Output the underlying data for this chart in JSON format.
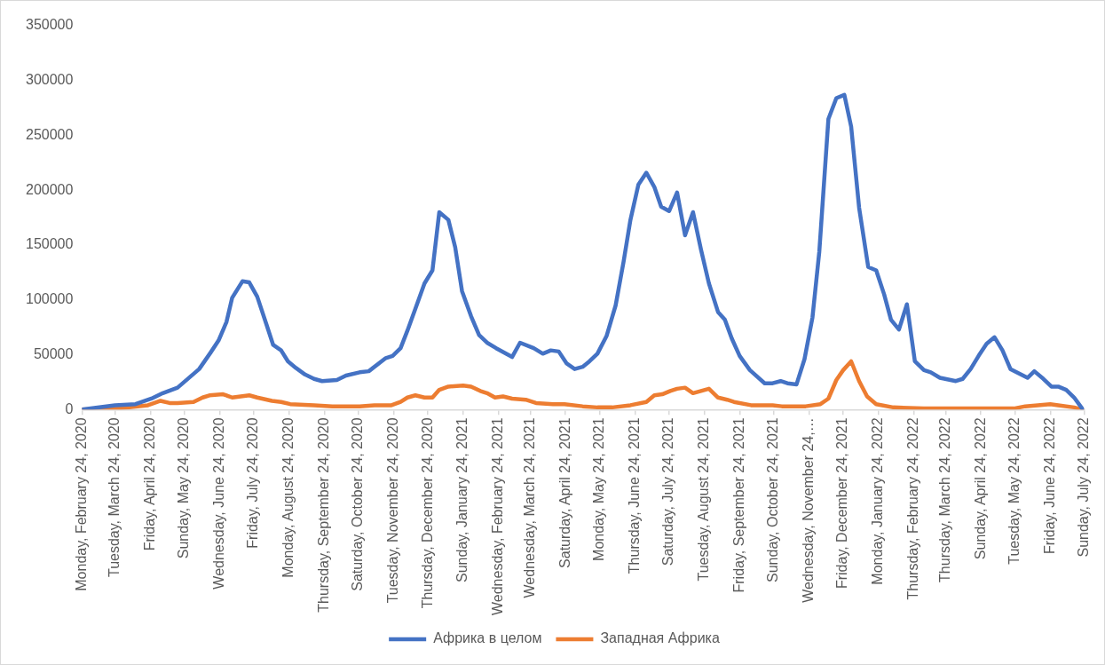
{
  "chart_data": {
    "type": "line",
    "xlim": [
      "2020-02-24",
      "2022-07-24"
    ],
    "xticks": [
      {
        "value": "2020-02-24",
        "label": "Monday, February 24, 2020"
      },
      {
        "value": "2020-03-24",
        "label": "Tuesday, March 24, 2020"
      },
      {
        "value": "2020-04-24",
        "label": "Friday, April 24, 2020"
      },
      {
        "value": "2020-05-24",
        "label": "Sunday, May 24, 2020"
      },
      {
        "value": "2020-06-24",
        "label": "Wednesday, June 24, 2020"
      },
      {
        "value": "2020-07-24",
        "label": "Friday, July 24, 2020"
      },
      {
        "value": "2020-08-24",
        "label": "Monday, August 24, 2020"
      },
      {
        "value": "2020-09-24",
        "label": "Thursday, September 24, 2020"
      },
      {
        "value": "2020-10-24",
        "label": "Saturday, October 24, 2020"
      },
      {
        "value": "2020-11-24",
        "label": "Tuesday, November 24, 2020"
      },
      {
        "value": "2020-12-24",
        "label": "Thursday, December 24, 2020"
      },
      {
        "value": "2021-01-24",
        "label": "Sunday, January 24, 2021"
      },
      {
        "value": "2021-02-24",
        "label": "Wednesday, February 24, 2021"
      },
      {
        "value": "2021-03-24",
        "label": "Wednesday, March 24, 2021"
      },
      {
        "value": "2021-04-24",
        "label": "Saturday, April 24, 2021"
      },
      {
        "value": "2021-05-24",
        "label": "Monday, May 24, 2021"
      },
      {
        "value": "2021-06-24",
        "label": "Thursday, June 24, 2021"
      },
      {
        "value": "2021-07-24",
        "label": "Saturday, July 24, 2021"
      },
      {
        "value": "2021-08-24",
        "label": "Tuesday, August 24, 2021"
      },
      {
        "value": "2021-09-24",
        "label": "Friday, September 24, 2021"
      },
      {
        "value": "2021-10-24",
        "label": "Sunday, October 24, 2021"
      },
      {
        "value": "2021-11-24",
        "label": "Wednesday, November 24,…"
      },
      {
        "value": "2021-12-24",
        "label": "Friday, December 24, 2021"
      },
      {
        "value": "2022-01-24",
        "label": "Monday, January 24, 2022"
      },
      {
        "value": "2022-02-24",
        "label": "Thursday, February 24, 2022"
      },
      {
        "value": "2022-03-24",
        "label": "Thursday, March 24, 2022"
      },
      {
        "value": "2022-04-24",
        "label": "Sunday, April 24, 2022"
      },
      {
        "value": "2022-05-24",
        "label": "Tuesday, May 24, 2022"
      },
      {
        "value": "2022-06-24",
        "label": "Friday, June 24, 2022"
      },
      {
        "value": "2022-07-24",
        "label": "Sunday, July 24, 2022"
      }
    ],
    "ylim": [
      0,
      350000
    ],
    "yticks": [
      0,
      50000,
      100000,
      150000,
      200000,
      250000,
      300000,
      350000
    ],
    "grid": false,
    "legend": "bottom",
    "marker": "none",
    "line_style": "solid",
    "series": [
      {
        "name": "Африка в целом",
        "color": "#4472c4",
        "x": [
          "2020-02-24",
          "2020-03-24",
          "2020-04-11",
          "2020-04-25",
          "2020-05-05",
          "2020-05-18",
          "2020-06-06",
          "2020-06-16",
          "2020-06-23",
          "2020-06-30",
          "2020-07-05",
          "2020-07-14",
          "2020-07-20",
          "2020-07-27",
          "2020-08-04",
          "2020-08-10",
          "2020-08-17",
          "2020-08-23",
          "2020-08-30",
          "2020-09-07",
          "2020-09-15",
          "2020-09-22",
          "2020-10-05",
          "2020-10-13",
          "2020-10-25",
          "2020-11-02",
          "2020-11-17",
          "2020-11-23",
          "2020-11-30",
          "2020-12-06",
          "2020-12-13",
          "2020-12-21",
          "2020-12-28",
          "2021-01-03",
          "2021-01-11",
          "2021-01-17",
          "2021-01-23",
          "2021-01-31",
          "2021-02-07",
          "2021-02-14",
          "2021-02-22",
          "2021-03-08",
          "2021-03-15",
          "2021-03-27",
          "2021-04-04",
          "2021-04-11",
          "2021-04-18",
          "2021-04-25",
          "2021-05-02",
          "2021-05-09",
          "2021-05-15",
          "2021-05-22",
          "2021-05-30",
          "2021-06-07",
          "2021-06-14",
          "2021-06-20",
          "2021-06-27",
          "2021-07-04",
          "2021-07-11",
          "2021-07-17",
          "2021-07-24",
          "2021-07-31",
          "2021-08-07",
          "2021-08-14",
          "2021-08-21",
          "2021-08-28",
          "2021-09-05",
          "2021-09-11",
          "2021-09-17",
          "2021-09-24",
          "2021-10-03",
          "2021-10-16",
          "2021-10-23",
          "2021-10-30",
          "2021-11-05",
          "2021-11-13",
          "2021-11-20",
          "2021-11-27",
          "2021-12-03",
          "2021-12-11",
          "2021-12-18",
          "2021-12-25",
          "2021-12-31",
          "2022-01-07",
          "2022-01-15",
          "2022-01-22",
          "2022-01-29",
          "2022-02-04",
          "2022-02-11",
          "2022-02-18",
          "2022-02-25",
          "2022-03-05",
          "2022-03-11",
          "2022-03-19",
          "2022-04-02",
          "2022-04-08",
          "2022-04-15",
          "2022-04-22",
          "2022-04-29",
          "2022-05-06",
          "2022-05-13",
          "2022-05-20",
          "2022-06-04",
          "2022-06-10",
          "2022-06-18",
          "2022-06-25",
          "2022-07-01",
          "2022-07-08",
          "2022-07-15",
          "2022-07-22"
        ],
        "values": [
          0,
          4000,
          5000,
          10000,
          15000,
          20000,
          37000,
          52000,
          63000,
          80000,
          102000,
          117000,
          116000,
          103000,
          78000,
          59000,
          54000,
          44000,
          38000,
          32000,
          28000,
          26000,
          27000,
          31000,
          34000,
          35000,
          47000,
          49000,
          56000,
          72000,
          92000,
          115000,
          127000,
          180000,
          173000,
          148000,
          108000,
          85000,
          68000,
          61000,
          56000,
          48000,
          61000,
          56000,
          51000,
          54000,
          53000,
          42000,
          37000,
          39000,
          44000,
          51000,
          67000,
          95000,
          135000,
          173000,
          205000,
          216000,
          203000,
          185000,
          181000,
          198000,
          159000,
          180000,
          146000,
          115000,
          89000,
          82000,
          65000,
          49000,
          36000,
          24000,
          24000,
          26000,
          24000,
          23000,
          46000,
          84000,
          144000,
          265000,
          284000,
          287000,
          258000,
          184000,
          130000,
          127000,
          105000,
          82000,
          73000,
          96000,
          44000,
          36000,
          34000,
          29000,
          26000,
          28000,
          37000,
          49000,
          60000,
          66000,
          54000,
          37000,
          29000,
          35000,
          28000,
          21000,
          21000,
          18000,
          11000,
          1000
        ]
      },
      {
        "name": "Западная Африка",
        "color": "#ed7d31",
        "x": [
          "2020-02-24",
          "2020-03-27",
          "2020-04-22",
          "2020-05-03",
          "2020-05-11",
          "2020-05-18",
          "2020-06-01",
          "2020-06-09",
          "2020-06-15",
          "2020-06-27",
          "2020-07-05",
          "2020-07-20",
          "2020-07-27",
          "2020-08-09",
          "2020-08-17",
          "2020-08-25",
          "2020-09-15",
          "2020-10-01",
          "2020-10-12",
          "2020-10-25",
          "2020-11-07",
          "2020-11-22",
          "2020-11-30",
          "2020-12-06",
          "2020-12-13",
          "2020-12-21",
          "2020-12-28",
          "2021-01-03",
          "2021-01-11",
          "2021-01-24",
          "2021-01-31",
          "2021-02-08",
          "2021-02-14",
          "2021-02-21",
          "2021-02-28",
          "2021-03-08",
          "2021-03-20",
          "2021-03-29",
          "2021-04-13",
          "2021-04-23",
          "2021-05-09",
          "2021-05-22",
          "2021-06-04",
          "2021-06-20",
          "2021-07-04",
          "2021-07-11",
          "2021-07-18",
          "2021-07-25",
          "2021-07-31",
          "2021-08-07",
          "2021-08-14",
          "2021-08-28",
          "2021-09-05",
          "2021-09-13",
          "2021-09-19",
          "2021-10-04",
          "2021-10-23",
          "2021-10-31",
          "2021-11-21",
          "2021-12-04",
          "2021-12-11",
          "2021-12-18",
          "2021-12-24",
          "2021-12-31",
          "2022-01-07",
          "2022-01-14",
          "2022-01-22",
          "2022-02-06",
          "2022-03-05",
          "2022-04-13",
          "2022-05-23",
          "2022-06-02",
          "2022-06-24",
          "2022-07-01",
          "2022-07-15",
          "2022-07-22"
        ],
        "values": [
          0,
          1000,
          4000,
          8000,
          6000,
          6000,
          7000,
          11000,
          13000,
          14000,
          11000,
          13000,
          11000,
          8000,
          7000,
          5000,
          4000,
          3000,
          3000,
          3000,
          4000,
          4000,
          7000,
          11000,
          13000,
          11000,
          11000,
          18000,
          21000,
          22000,
          21000,
          17000,
          15000,
          11000,
          12000,
          10000,
          9000,
          6000,
          5000,
          5000,
          3000,
          2000,
          2000,
          4000,
          7000,
          13000,
          14000,
          17000,
          19000,
          20000,
          15000,
          19000,
          11000,
          9000,
          7000,
          4000,
          4000,
          3000,
          3000,
          5000,
          10000,
          27000,
          36000,
          44000,
          26000,
          12000,
          5000,
          2000,
          1000,
          1000,
          1000,
          3000,
          5000,
          4000,
          2000,
          0
        ]
      }
    ]
  }
}
